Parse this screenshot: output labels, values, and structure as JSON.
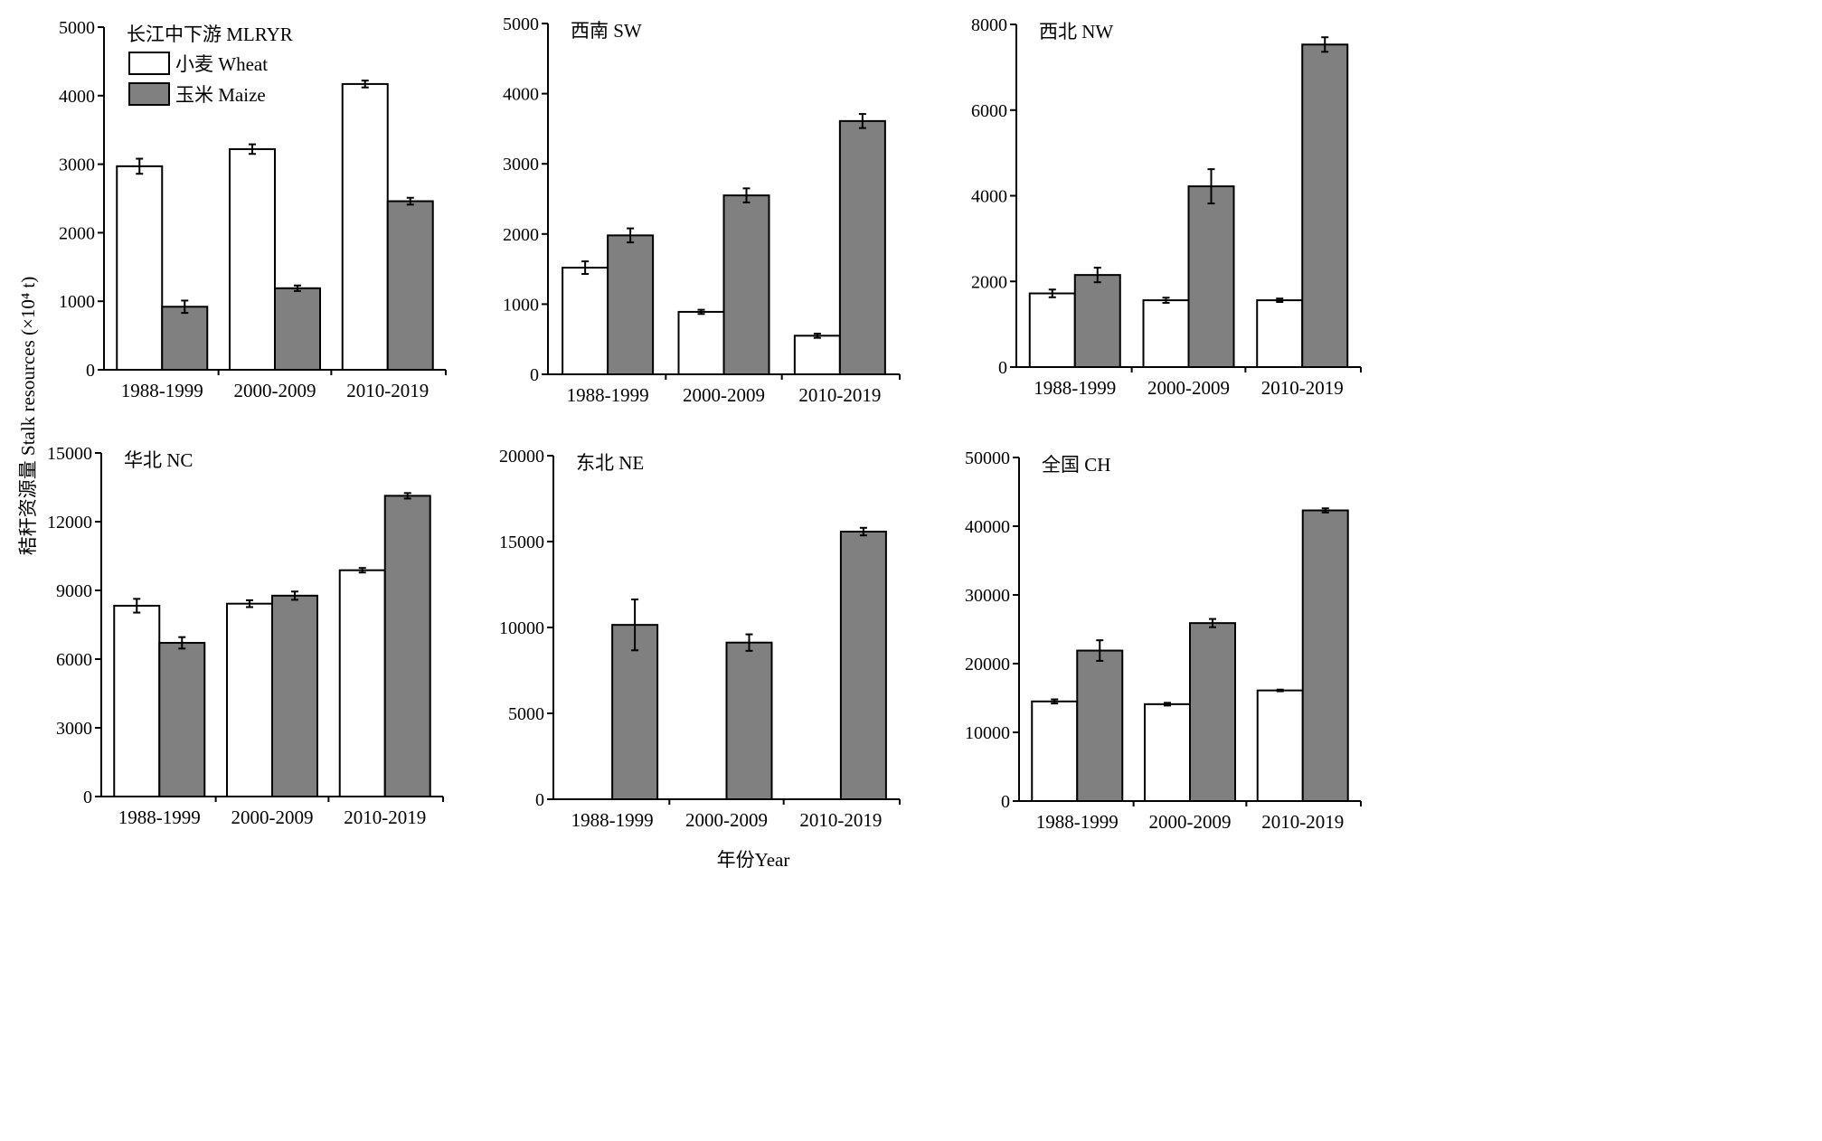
{
  "figure": {
    "ylabel": "秸秆资源量 Stalk resources (×10⁴ t)",
    "xlabel": "年份Year",
    "legend": [
      {
        "label": "小麦 Wheat",
        "color": "#ffffff"
      },
      {
        "label": "玉米 Maize",
        "color": "#808080"
      }
    ]
  },
  "chart_data": [
    {
      "type": "bar",
      "title": "长江中下游 MLRYR",
      "categories": [
        "1988-1999",
        "2000-2009",
        "2010-2019"
      ],
      "ylim": [
        0,
        5000
      ],
      "yticks": [
        0,
        1000,
        2000,
        3000,
        4000,
        5000
      ],
      "series": [
        {
          "name": "小麦 Wheat",
          "values": [
            2970,
            3220,
            4170
          ],
          "errors": [
            110,
            70,
            50
          ]
        },
        {
          "name": "玉米 Maize",
          "values": [
            920,
            1190,
            2460
          ],
          "errors": [
            90,
            40,
            50
          ]
        }
      ]
    },
    {
      "type": "bar",
      "title": "西南 SW",
      "categories": [
        "1988-1999",
        "2000-2009",
        "2010-2019"
      ],
      "ylim": [
        0,
        5000
      ],
      "yticks": [
        0,
        1000,
        2000,
        3000,
        4000,
        5000
      ],
      "series": [
        {
          "name": "小麦 Wheat",
          "values": [
            1520,
            890,
            550
          ],
          "errors": [
            90,
            30,
            30
          ]
        },
        {
          "name": "玉米 Maize",
          "values": [
            1980,
            2550,
            3610
          ],
          "errors": [
            100,
            100,
            100
          ]
        }
      ]
    },
    {
      "type": "bar",
      "title": "西北 NW",
      "categories": [
        "1988-1999",
        "2000-2009",
        "2010-2019"
      ],
      "ylim": [
        0,
        8000
      ],
      "yticks": [
        0,
        2000,
        4000,
        6000,
        8000
      ],
      "series": [
        {
          "name": "小麦 Wheat",
          "values": [
            1720,
            1560,
            1560
          ],
          "errors": [
            90,
            60,
            40
          ]
        },
        {
          "name": "玉米 Maize",
          "values": [
            2150,
            4220,
            7530
          ],
          "errors": [
            170,
            400,
            170
          ]
        }
      ]
    },
    {
      "type": "bar",
      "title": "华北 NC",
      "categories": [
        "1988-1999",
        "2000-2009",
        "2010-2019"
      ],
      "ylim": [
        0,
        15000
      ],
      "yticks": [
        0,
        3000,
        6000,
        9000,
        12000,
        15000
      ],
      "series": [
        {
          "name": "小麦 Wheat",
          "values": [
            8330,
            8420,
            9880
          ],
          "errors": [
            300,
            150,
            100
          ]
        },
        {
          "name": "玉米 Maize",
          "values": [
            6710,
            8770,
            13130
          ],
          "errors": [
            250,
            180,
            120
          ]
        }
      ]
    },
    {
      "type": "bar",
      "title": "东北 NE",
      "categories": [
        "1988-1999",
        "2000-2009",
        "2010-2019"
      ],
      "ylim": [
        0,
        20000
      ],
      "yticks": [
        0,
        5000,
        10000,
        15000,
        20000
      ],
      "series": [
        {
          "name": "小麦 Wheat",
          "values": [
            0,
            0,
            0
          ],
          "errors": [
            0,
            0,
            0
          ]
        },
        {
          "name": "玉米 Maize",
          "values": [
            10150,
            9120,
            15580
          ],
          "errors": [
            1480,
            480,
            220
          ]
        }
      ]
    },
    {
      "type": "bar",
      "title": "全国 CH",
      "categories": [
        "1988-1999",
        "2000-2009",
        "2010-2019"
      ],
      "ylim": [
        0,
        50000
      ],
      "yticks": [
        0,
        10000,
        20000,
        30000,
        40000,
        50000
      ],
      "series": [
        {
          "name": "小麦 Wheat",
          "values": [
            14500,
            14100,
            16100
          ],
          "errors": [
            300,
            200,
            120
          ]
        },
        {
          "name": "玉米 Maize",
          "values": [
            21900,
            25900,
            42300
          ],
          "errors": [
            1500,
            600,
            300
          ]
        }
      ]
    }
  ]
}
